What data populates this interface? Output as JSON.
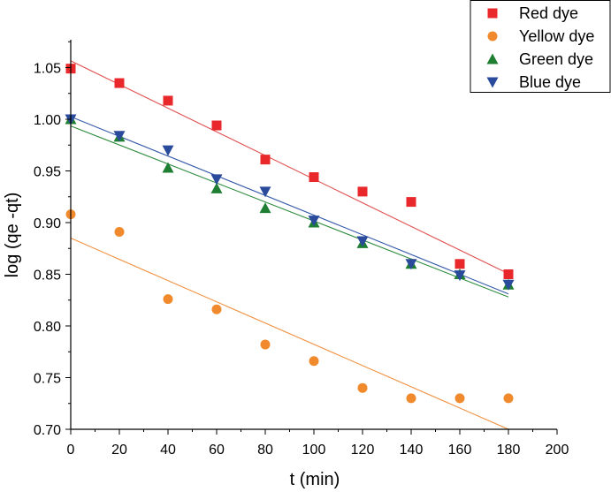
{
  "chart_data": {
    "type": "scatter",
    "title": "",
    "xlabel": "t (min)",
    "ylabel": "log (qe -qt)",
    "xlim": [
      0,
      200
    ],
    "ylim": [
      0.7,
      1.08
    ],
    "xticks": [
      0,
      20,
      40,
      60,
      80,
      100,
      120,
      140,
      160,
      180,
      200
    ],
    "yticks": [
      0.7,
      0.75,
      0.8,
      0.85,
      0.9,
      0.95,
      1.0,
      1.05
    ],
    "xtick_labels": [
      "0",
      "20",
      "40",
      "60",
      "80",
      "100",
      "120",
      "140",
      "160",
      "180",
      "200"
    ],
    "ytick_labels": [
      "0.70",
      "0.75",
      "0.80",
      "0.85",
      "0.90",
      "0.95",
      "1.00",
      "1.05"
    ],
    "grid": false,
    "legend_position": "top-right",
    "x": [
      0,
      20,
      40,
      60,
      80,
      100,
      120,
      140,
      160,
      180
    ],
    "series": [
      {
        "name": "Red dye",
        "marker": "square",
        "color": "#e8282b",
        "line_color": "#e05050",
        "values": [
          1.049,
          1.035,
          1.018,
          0.994,
          0.961,
          0.944,
          0.93,
          0.92,
          0.86,
          0.85
        ],
        "fit": [
          1.0565,
          0.8505
        ]
      },
      {
        "name": "Yellow dye",
        "marker": "circle",
        "color": "#f08a2c",
        "line_color": "#f09040",
        "values": [
          0.908,
          0.891,
          0.826,
          0.816,
          0.782,
          0.766,
          0.74,
          0.73,
          0.73,
          0.73
        ],
        "fit": [
          0.885,
          0.7
        ]
      },
      {
        "name": "Green dye",
        "marker": "triangle-up",
        "color": "#1e7f33",
        "line_color": "#2e8b3e",
        "values": [
          1.0,
          0.983,
          0.953,
          0.933,
          0.914,
          0.9,
          0.88,
          0.86,
          0.85,
          0.84
        ],
        "fit": [
          0.9935,
          0.828
        ]
      },
      {
        "name": "Blue dye",
        "marker": "triangle-down",
        "color": "#2a4b9b",
        "line_color": "#3458a8",
        "values": [
          1.0,
          0.984,
          0.97,
          0.942,
          0.93,
          0.902,
          0.882,
          0.86,
          0.849,
          0.84
        ],
        "fit": [
          1.0025,
          0.831
        ]
      }
    ]
  }
}
